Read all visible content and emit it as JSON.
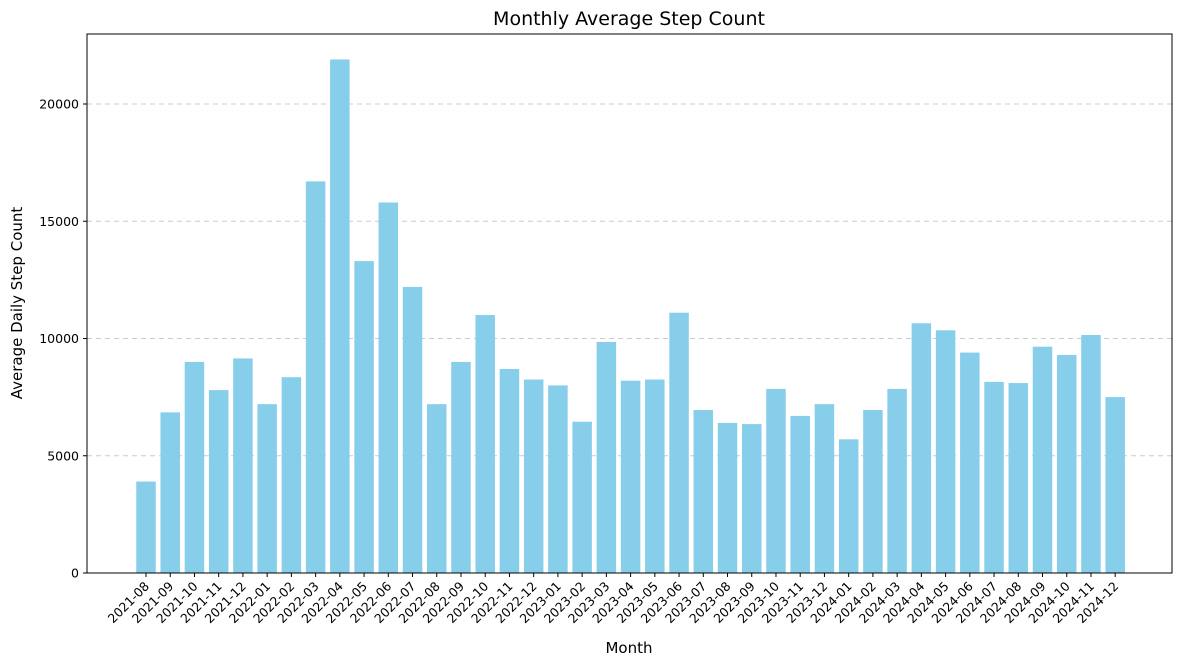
{
  "chart_data": {
    "type": "bar",
    "title": "Monthly Average Step Count",
    "xlabel": "Month",
    "ylabel": "Average Daily Step Count",
    "ylim": [
      0,
      23000
    ],
    "yticks": [
      0,
      5000,
      10000,
      15000,
      20000
    ],
    "grid": "y",
    "bar_color": "#87ceeb",
    "categories": [
      "2021-08",
      "2021-09",
      "2021-10",
      "2021-11",
      "2021-12",
      "2022-01",
      "2022-02",
      "2022-03",
      "2022-04",
      "2022-05",
      "2022-06",
      "2022-07",
      "2022-08",
      "2022-09",
      "2022-10",
      "2022-11",
      "2022-12",
      "2023-01",
      "2023-02",
      "2023-03",
      "2023-04",
      "2023-05",
      "2023-06",
      "2023-07",
      "2023-08",
      "2023-09",
      "2023-10",
      "2023-11",
      "2023-12",
      "2024-01",
      "2024-02",
      "2024-03",
      "2024-04",
      "2024-05",
      "2024-06",
      "2024-07",
      "2024-08",
      "2024-09",
      "2024-10",
      "2024-11",
      "2024-12"
    ],
    "values": [
      3900,
      6850,
      9000,
      7800,
      9150,
      7200,
      8350,
      16700,
      21900,
      13300,
      15800,
      12200,
      7200,
      9000,
      11000,
      8700,
      8250,
      8000,
      6450,
      9850,
      8200,
      8250,
      11100,
      6950,
      6400,
      6350,
      7850,
      6700,
      7200,
      5700,
      6950,
      7850,
      10650,
      10350,
      9400,
      8150,
      8100,
      9650,
      9300,
      10150,
      7500
    ]
  }
}
